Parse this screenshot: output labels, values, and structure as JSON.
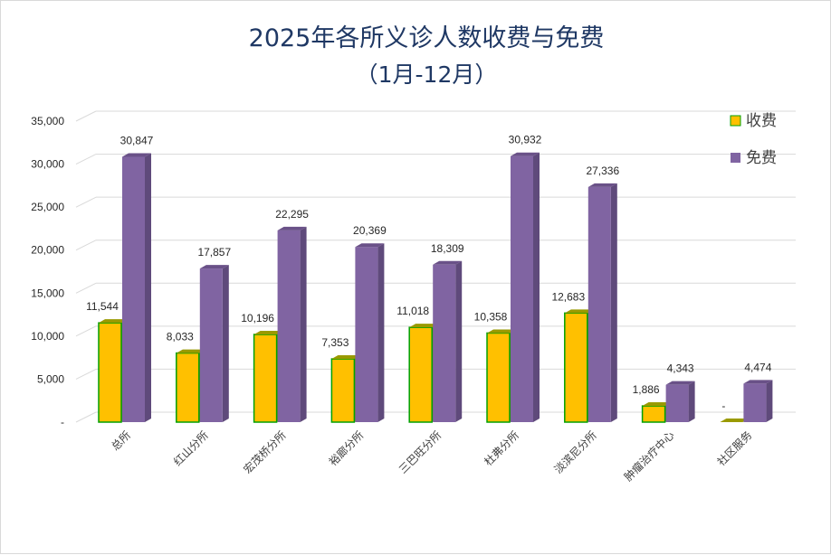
{
  "chart_data": {
    "type": "bar",
    "title": "2025年各所义诊人数收费与免费",
    "subtitle": "（1月-12月）",
    "categories": [
      "总所",
      "红山分所",
      "宏茂桥分所",
      "裕廊分所",
      "三巴旺分所",
      "杜弗分所",
      "淡滨尼分所",
      "肿瘤治疗中心",
      "社区服务"
    ],
    "series": [
      {
        "name": "收费",
        "color": "#ffc000",
        "values": [
          11544,
          8033,
          10196,
          7353,
          11018,
          10358,
          12683,
          1886,
          0
        ],
        "labels": [
          "11,544",
          "8,033",
          "10,196",
          "7,353",
          "11,018",
          "10,358",
          "12,683",
          "1,886",
          "-"
        ]
      },
      {
        "name": "免费",
        "color": "#8064a2",
        "values": [
          30847,
          17857,
          22295,
          20369,
          18309,
          30932,
          27336,
          4343,
          4474
        ],
        "labels": [
          "30,847",
          "17,857",
          "22,295",
          "20,369",
          "18,309",
          "30,932",
          "27,336",
          "4,343",
          "4,474"
        ]
      }
    ],
    "ylim": [
      0,
      35000
    ],
    "yticks": [
      0,
      5000,
      10000,
      15000,
      20000,
      25000,
      30000,
      35000
    ],
    "ytick_labels": [
      "-",
      "5,000",
      "10,000",
      "15,000",
      "20,000",
      "25,000",
      "30,000",
      "35,000"
    ],
    "grid": true,
    "legend_position": "top-right",
    "colors": {
      "fee_edge": "#00a000",
      "free_side": "#5f4a7b",
      "free_top": "#6a5188",
      "fee_side": "#808000",
      "fee_top": "#9a9a00",
      "grid": "#d9d9d9",
      "title": "#1f3864"
    }
  }
}
